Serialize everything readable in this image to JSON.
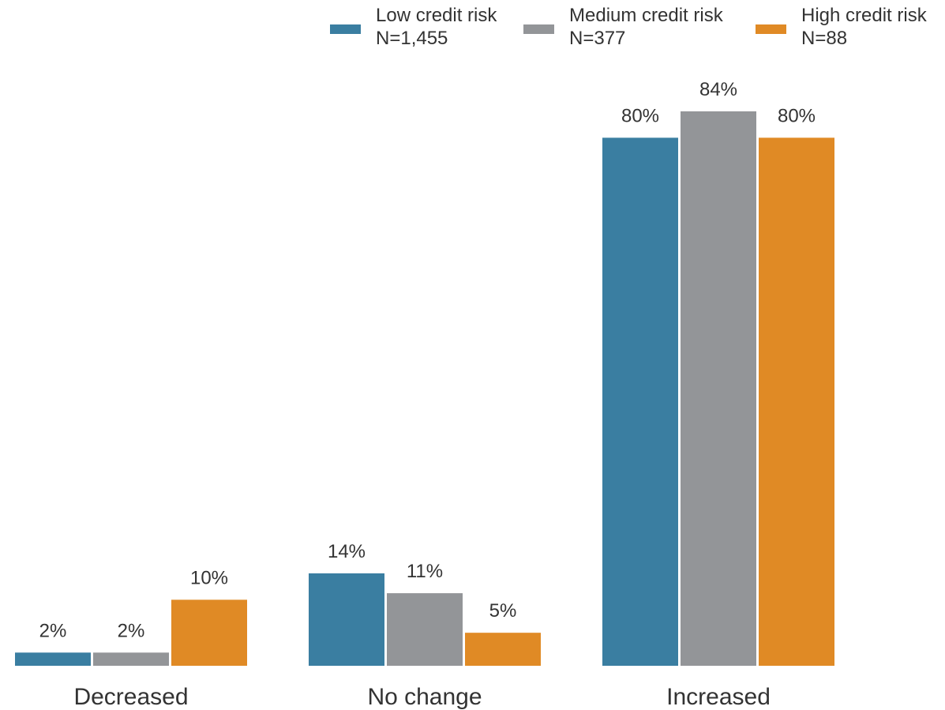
{
  "chart_data": {
    "type": "bar",
    "categories": [
      "Decreased",
      "No change",
      "Increased"
    ],
    "series": [
      {
        "name": "Low credit risk",
        "n_label": "N=1,455",
        "color": "#3a7ea1",
        "values": [
          2,
          14,
          80
        ],
        "labels": [
          "2%",
          "14%",
          "80%"
        ]
      },
      {
        "name": "Medium credit risk",
        "n_label": "N=377",
        "color": "#939598",
        "values": [
          2,
          11,
          84
        ],
        "labels": [
          "2%",
          "11%",
          "84%"
        ]
      },
      {
        "name": "High credit risk",
        "n_label": "N=88",
        "color": "#e08a25",
        "values": [
          10,
          5,
          80
        ],
        "labels": [
          "10%",
          "5%",
          "80%"
        ]
      }
    ],
    "ylim": [
      0,
      84
    ],
    "grid": false,
    "legend_position": "top-right"
  }
}
